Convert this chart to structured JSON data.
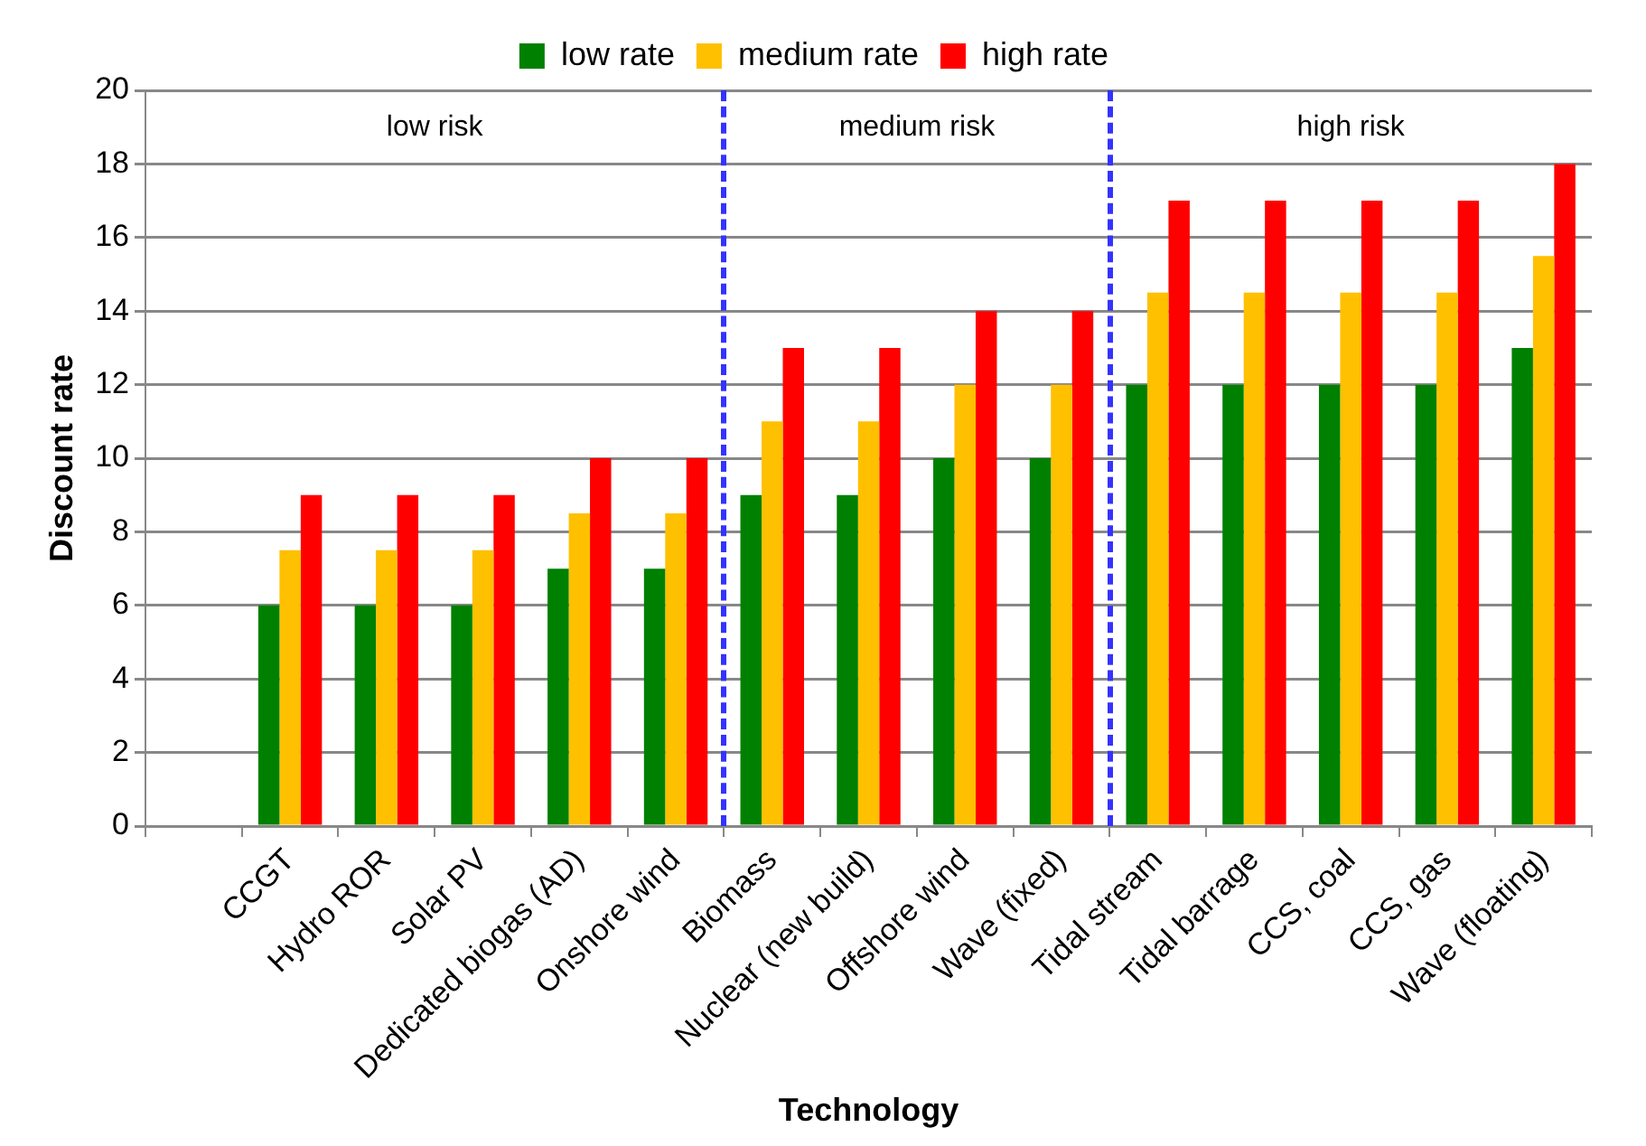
{
  "chart_data": {
    "type": "bar",
    "xlabel": "Technology",
    "ylabel": "Discount rate",
    "categories": [
      null,
      "CCGT",
      "Hydro ROR",
      "Solar PV",
      "Dedicated biogas (AD)",
      "Onshore wind",
      "Biomass",
      "Nuclear (new build)",
      "Offshore wind",
      "Wave (fixed)",
      "Tidal stream",
      "Tidal barrage",
      "CCS, coal",
      "CCS, gas",
      "Wave (floating)"
    ],
    "series": [
      {
        "name": "low rate",
        "color": "#008000",
        "values": [
          null,
          6,
          6,
          6,
          7,
          7,
          9,
          9,
          10,
          10,
          12,
          12,
          12,
          12,
          13
        ]
      },
      {
        "name": "medium rate",
        "color": "#ffc000",
        "values": [
          null,
          7.5,
          7.5,
          7.5,
          8.5,
          8.5,
          11,
          11,
          12,
          12,
          14.5,
          14.5,
          14.5,
          14.5,
          15.5
        ]
      },
      {
        "name": "high rate",
        "color": "#ff0000",
        "values": [
          null,
          9,
          9,
          9,
          10,
          10,
          13,
          13,
          14,
          14,
          17,
          17,
          17,
          17,
          18
        ]
      }
    ],
    "ylim": [
      0,
      20
    ],
    "yticks": [
      0,
      2,
      4,
      6,
      8,
      10,
      12,
      14,
      16,
      18,
      20
    ],
    "grid": "y",
    "legend": "top",
    "annotations": [
      "low risk",
      "medium risk",
      "high risk"
    ]
  }
}
